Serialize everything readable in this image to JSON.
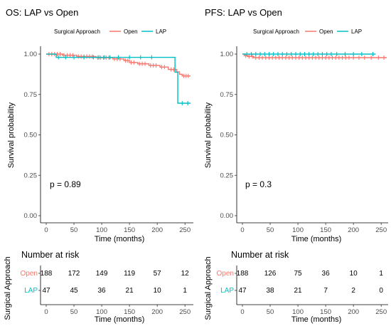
{
  "chart_data": [
    {
      "type": "line",
      "title": "OS: LAP vs Open",
      "xlabel": "Time (months)",
      "ylabel": "Survival probability",
      "xlim": [
        0,
        260
      ],
      "ylim": [
        0,
        1
      ],
      "x_ticks": [
        "0",
        "50",
        "100",
        "150",
        "200",
        "250"
      ],
      "y_ticks": [
        "0.00",
        "0.25",
        "0.50",
        "0.75",
        "1.00"
      ],
      "x_tick_values": [
        0,
        50,
        100,
        150,
        200,
        250
      ],
      "y_tick_values": [
        0,
        0.25,
        0.5,
        0.75,
        1.0
      ],
      "legend": {
        "title": "Surgical Approach",
        "placement": "top",
        "items": [
          {
            "name": "Open",
            "color": "#F8766D"
          },
          {
            "name": "LAP",
            "color": "#00BFC4"
          }
        ]
      },
      "p_value_text": "p = 0.89",
      "series": [
        {
          "name": "Open",
          "color": "#F8766D",
          "steps": [
            [
              0,
              1.0
            ],
            [
              30,
              0.993
            ],
            [
              55,
              0.985
            ],
            [
              90,
              0.978
            ],
            [
              120,
              0.97
            ],
            [
              140,
              0.96
            ],
            [
              150,
              0.948
            ],
            [
              165,
              0.94
            ],
            [
              185,
              0.93
            ],
            [
              205,
              0.92
            ],
            [
              220,
              0.905
            ],
            [
              235,
              0.89
            ],
            [
              240,
              0.875
            ],
            [
              245,
              0.865
            ],
            [
              260,
              0.865
            ]
          ],
          "censor": [
            [
              5,
              1.0
            ],
            [
              10,
              1.0
            ],
            [
              15,
              1.0
            ],
            [
              20,
              1.0
            ],
            [
              25,
              1.0
            ],
            [
              32,
              0.993
            ],
            [
              38,
              0.993
            ],
            [
              43,
              0.993
            ],
            [
              48,
              0.993
            ],
            [
              58,
              0.985
            ],
            [
              63,
              0.985
            ],
            [
              68,
              0.985
            ],
            [
              73,
              0.985
            ],
            [
              78,
              0.985
            ],
            [
              83,
              0.985
            ],
            [
              93,
              0.978
            ],
            [
              98,
              0.978
            ],
            [
              103,
              0.978
            ],
            [
              108,
              0.978
            ],
            [
              113,
              0.978
            ],
            [
              123,
              0.97
            ],
            [
              128,
              0.97
            ],
            [
              133,
              0.97
            ],
            [
              143,
              0.96
            ],
            [
              147,
              0.96
            ],
            [
              153,
              0.948
            ],
            [
              158,
              0.948
            ],
            [
              168,
              0.94
            ],
            [
              173,
              0.94
            ],
            [
              178,
              0.94
            ],
            [
              188,
              0.93
            ],
            [
              193,
              0.93
            ],
            [
              198,
              0.93
            ],
            [
              208,
              0.92
            ],
            [
              213,
              0.92
            ],
            [
              225,
              0.905
            ],
            [
              230,
              0.905
            ],
            [
              248,
              0.865
            ],
            [
              252,
              0.865
            ],
            [
              256,
              0.865
            ]
          ]
        },
        {
          "name": "LAP",
          "color": "#00BFC4",
          "steps": [
            [
              0,
              1.0
            ],
            [
              18,
              0.98
            ],
            [
              232,
              0.98
            ],
            [
              232,
              0.888
            ],
            [
              237,
              0.888
            ],
            [
              237,
              0.696
            ],
            [
              260,
              0.696
            ]
          ],
          "censor": [
            [
              22,
              0.98
            ],
            [
              35,
              0.98
            ],
            [
              50,
              0.98
            ],
            [
              68,
              0.98
            ],
            [
              85,
              0.98
            ],
            [
              95,
              0.98
            ],
            [
              105,
              0.98
            ],
            [
              115,
              0.98
            ],
            [
              130,
              0.98
            ],
            [
              150,
              0.98
            ],
            [
              170,
              0.98
            ],
            [
              190,
              0.98
            ],
            [
              245,
              0.696
            ],
            [
              255,
              0.696
            ]
          ]
        }
      ]
    },
    {
      "type": "line",
      "title": "PFS: LAP vs Open",
      "xlabel": "Time (months)",
      "ylabel": "Survival probability",
      "xlim": [
        0,
        260
      ],
      "ylim": [
        0,
        1
      ],
      "x_ticks": [
        "0",
        "50",
        "100",
        "150",
        "200",
        "250"
      ],
      "y_ticks": [
        "0.00",
        "0.25",
        "0.50",
        "0.75",
        "1.00"
      ],
      "x_tick_values": [
        0,
        50,
        100,
        150,
        200,
        250
      ],
      "y_tick_values": [
        0,
        0.25,
        0.5,
        0.75,
        1.0
      ],
      "legend": {
        "title": "Surgical Approach",
        "placement": "top",
        "items": [
          {
            "name": "Open",
            "color": "#F8766D"
          },
          {
            "name": "LAP",
            "color": "#00BFC4"
          }
        ]
      },
      "p_value_text": "p = 0.3",
      "series": [
        {
          "name": "Open",
          "color": "#F8766D",
          "steps": [
            [
              0,
              1.0
            ],
            [
              4,
              0.99
            ],
            [
              10,
              0.985
            ],
            [
              20,
              0.978
            ],
            [
              260,
              0.978
            ]
          ],
          "censor": [
            [
              6,
              0.99
            ],
            [
              12,
              0.985
            ],
            [
              18,
              0.985
            ],
            [
              24,
              0.978
            ],
            [
              30,
              0.978
            ],
            [
              36,
              0.978
            ],
            [
              42,
              0.978
            ],
            [
              48,
              0.978
            ],
            [
              54,
              0.978
            ],
            [
              60,
              0.978
            ],
            [
              66,
              0.978
            ],
            [
              72,
              0.978
            ],
            [
              78,
              0.978
            ],
            [
              84,
              0.978
            ],
            [
              90,
              0.978
            ],
            [
              96,
              0.978
            ],
            [
              102,
              0.978
            ],
            [
              108,
              0.978
            ],
            [
              114,
              0.978
            ],
            [
              120,
              0.978
            ],
            [
              126,
              0.978
            ],
            [
              132,
              0.978
            ],
            [
              138,
              0.978
            ],
            [
              144,
              0.978
            ],
            [
              150,
              0.978
            ],
            [
              156,
              0.978
            ],
            [
              162,
              0.978
            ],
            [
              168,
              0.978
            ],
            [
              174,
              0.978
            ],
            [
              180,
              0.978
            ],
            [
              186,
              0.978
            ],
            [
              192,
              0.978
            ],
            [
              200,
              0.978
            ],
            [
              210,
              0.978
            ],
            [
              220,
              0.978
            ],
            [
              232,
              0.978
            ],
            [
              245,
              0.978
            ],
            [
              255,
              0.978
            ]
          ]
        },
        {
          "name": "LAP",
          "color": "#00BFC4",
          "steps": [
            [
              0,
              1.0
            ],
            [
              240,
              1.0
            ]
          ],
          "censor": [
            [
              8,
              1.0
            ],
            [
              16,
              1.0
            ],
            [
              24,
              1.0
            ],
            [
              32,
              1.0
            ],
            [
              40,
              1.0
            ],
            [
              48,
              1.0
            ],
            [
              56,
              1.0
            ],
            [
              64,
              1.0
            ],
            [
              72,
              1.0
            ],
            [
              80,
              1.0
            ],
            [
              88,
              1.0
            ],
            [
              96,
              1.0
            ],
            [
              104,
              1.0
            ],
            [
              112,
              1.0
            ],
            [
              120,
              1.0
            ],
            [
              128,
              1.0
            ],
            [
              136,
              1.0
            ],
            [
              144,
              1.0
            ],
            [
              152,
              1.0
            ],
            [
              160,
              1.0
            ],
            [
              170,
              1.0
            ],
            [
              185,
              1.0
            ],
            [
              200,
              1.0
            ],
            [
              215,
              1.0
            ],
            [
              235,
              1.0
            ]
          ]
        }
      ]
    },
    {
      "type": "table",
      "title": "Number at risk",
      "xlabel": "Time (months)",
      "ylabel": "Surgical Approach",
      "xlim": [
        0,
        260
      ],
      "x_ticks": [
        "0",
        "50",
        "100",
        "150",
        "200",
        "250"
      ],
      "x_tick_values": [
        0,
        50,
        100,
        150,
        200,
        250
      ],
      "rows": [
        {
          "name": "Open",
          "color": "#F8766D",
          "values": [
            "188",
            "172",
            "149",
            "119",
            "57",
            "12"
          ]
        },
        {
          "name": "LAP",
          "color": "#00BFC4",
          "values": [
            "47",
            "45",
            "36",
            "21",
            "10",
            "1"
          ]
        }
      ]
    },
    {
      "type": "table",
      "title": "Number at risk",
      "xlabel": "Time (months)",
      "ylabel": "Surgical Approach",
      "xlim": [
        0,
        260
      ],
      "x_ticks": [
        "0",
        "50",
        "100",
        "150",
        "200",
        "250"
      ],
      "x_tick_values": [
        0,
        50,
        100,
        150,
        200,
        250
      ],
      "rows": [
        {
          "name": "Open",
          "color": "#F8766D",
          "values": [
            "188",
            "126",
            "75",
            "36",
            "10",
            "1"
          ]
        },
        {
          "name": "LAP",
          "color": "#00BFC4",
          "values": [
            "47",
            "38",
            "21",
            "7",
            "2",
            "0"
          ]
        }
      ]
    }
  ]
}
